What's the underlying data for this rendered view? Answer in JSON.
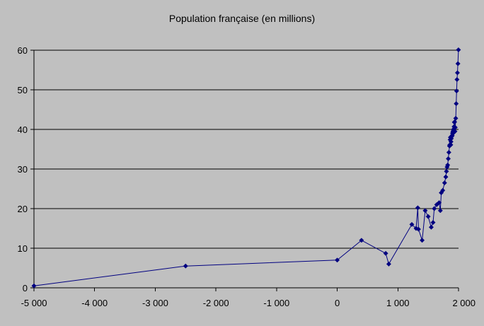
{
  "chart_data": {
    "type": "line",
    "title": "Population française (en millions)",
    "xlabel": "",
    "ylabel": "",
    "xlim": [
      -5000,
      2000
    ],
    "ylim": [
      0,
      60
    ],
    "x_ticks": [
      -5000,
      -4000,
      -3000,
      -2000,
      -1000,
      0,
      1000,
      2000
    ],
    "x_tick_labels": [
      "-5 000",
      "-4 000",
      "-3 000",
      "-2 000",
      "-1 000",
      "0",
      "1 000",
      "2 000"
    ],
    "y_ticks": [
      0,
      10,
      20,
      30,
      40,
      50,
      60
    ],
    "y_tick_labels": [
      "0",
      "10",
      "20",
      "30",
      "40",
      "50",
      "60"
    ],
    "grid": "horizontal",
    "legend": "none",
    "colors": {
      "background": "#c0c0c0",
      "plot_area": "#c0c0c0",
      "gridline": "#000000",
      "series": "#000080"
    },
    "series": [
      {
        "marker": "diamond",
        "x": [
          -5000,
          -2500,
          0,
          400,
          800,
          850,
          1230,
          1300,
          1328,
          1340,
          1400,
          1450,
          1500,
          1550,
          1580,
          1600,
          1640,
          1680,
          1700,
          1715,
          1740,
          1770,
          1790,
          1801,
          1811,
          1821,
          1831,
          1841,
          1851,
          1856,
          1861,
          1866,
          1872,
          1876,
          1881,
          1886,
          1891,
          1896,
          1901,
          1906,
          1911,
          1916,
          1921,
          1926,
          1931,
          1936,
          1941,
          1946,
          1954,
          1962,
          1968,
          1975,
          1982,
          1990,
          1999
        ],
        "y": [
          0.5,
          5.5,
          7,
          12,
          8.7,
          6,
          16,
          15,
          20.2,
          14.8,
          12,
          19.5,
          18,
          15.3,
          16.5,
          20,
          21,
          21.5,
          19.5,
          24,
          24.6,
          26.5,
          28,
          29.4,
          30.5,
          31,
          32.6,
          34.2,
          35.8,
          36.1,
          37.4,
          38,
          36.1,
          36.9,
          37.7,
          38.2,
          38.3,
          38.5,
          39,
          39.3,
          39.6,
          40,
          39.2,
          40.7,
          41.8,
          41.9,
          39.5,
          40.5,
          42.8,
          46.5,
          49.7,
          52.6,
          54.3,
          56.6,
          60.1
        ]
      }
    ]
  }
}
